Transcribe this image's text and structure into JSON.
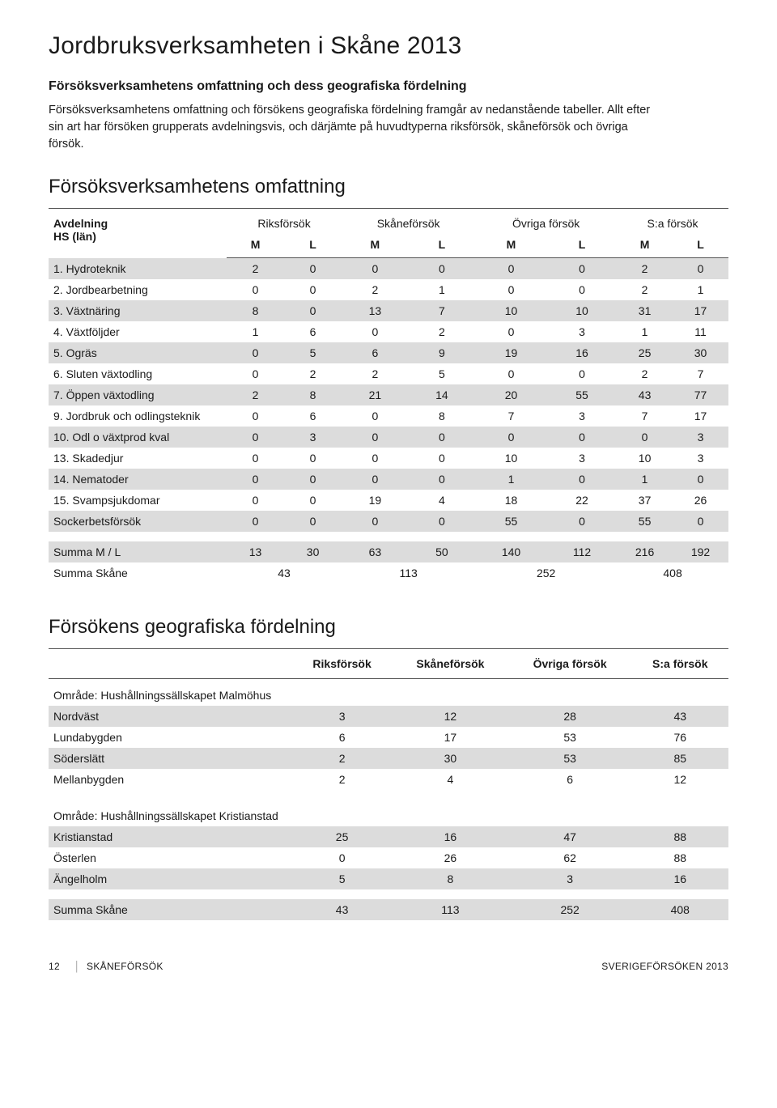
{
  "title": "Jordbruksverksamheten i Skåne 2013",
  "subhead": "Försöksverksamhetens omfattning och dess geografiska fördelning",
  "intro": "Försöksverksamhetens omfattning och försökens geografiska fördelning framgår av nedanstående tabeller. Allt efter sin art har försöken grupperats avdelningsvis, och därjämte på huvudtyperna riksförsök, skåneförsök och övriga försök.",
  "section1_title": "Försöksverksamhetens omfattning",
  "t1": {
    "head_label_line1": "Avdelning",
    "head_label_line2": "HS (län)",
    "groups": [
      "Riksförsök",
      "Skåneförsök",
      "Övriga försök",
      "S:a försök"
    ],
    "subcols": [
      "M",
      "L",
      "M",
      "L",
      "M",
      "L",
      "M",
      "L"
    ],
    "rows": [
      {
        "label": "1. Hydroteknik",
        "v": [
          2,
          0,
          0,
          0,
          0,
          0,
          2,
          0
        ]
      },
      {
        "label": "2. Jordbearbetning",
        "v": [
          0,
          0,
          2,
          1,
          0,
          0,
          2,
          1
        ]
      },
      {
        "label": "3. Växtnäring",
        "v": [
          8,
          0,
          13,
          7,
          10,
          10,
          31,
          17
        ]
      },
      {
        "label": "4. Växtföljder",
        "v": [
          1,
          6,
          0,
          2,
          0,
          3,
          1,
          11
        ]
      },
      {
        "label": "5. Ogräs",
        "v": [
          0,
          5,
          6,
          9,
          19,
          16,
          25,
          30
        ]
      },
      {
        "label": "6. Sluten växtodling",
        "v": [
          0,
          2,
          2,
          5,
          0,
          0,
          2,
          7
        ]
      },
      {
        "label": "7. Öppen växtodling",
        "v": [
          2,
          8,
          21,
          14,
          20,
          55,
          43,
          77
        ]
      },
      {
        "label": "9. Jordbruk och odlingsteknik",
        "v": [
          0,
          6,
          0,
          8,
          7,
          3,
          7,
          17
        ]
      },
      {
        "label": "10. Odl o växtprod kval",
        "v": [
          0,
          3,
          0,
          0,
          0,
          0,
          0,
          3
        ]
      },
      {
        "label": "13. Skadedjur",
        "v": [
          0,
          0,
          0,
          0,
          10,
          3,
          10,
          3
        ]
      },
      {
        "label": "14. Nematoder",
        "v": [
          0,
          0,
          0,
          0,
          1,
          0,
          1,
          0
        ]
      },
      {
        "label": "15. Svampsjukdomar",
        "v": [
          0,
          0,
          19,
          4,
          18,
          22,
          37,
          26
        ]
      },
      {
        "label": "Sockerbetsförsök",
        "v": [
          0,
          0,
          0,
          0,
          55,
          0,
          55,
          0
        ]
      }
    ],
    "sumML_label": "Summa M / L",
    "sumML": [
      13,
      30,
      63,
      50,
      140,
      112,
      216,
      192
    ],
    "sumSkane_label": "Summa Skåne",
    "sumSkane": [
      43,
      113,
      252,
      408
    ]
  },
  "section2_title": "Försökens geografiska fördelning",
  "t2": {
    "cols": [
      "Riksförsök",
      "Skåneförsök",
      "Övriga försök",
      "S:a försök"
    ],
    "area1": "Område: Hushållningssällskapet Malmöhus",
    "rows1": [
      {
        "label": "Nordväst",
        "v": [
          3,
          12,
          28,
          43
        ],
        "shade": true
      },
      {
        "label": "Lundabygden",
        "v": [
          6,
          17,
          53,
          76
        ],
        "shade": false
      },
      {
        "label": "Söderslätt",
        "v": [
          2,
          30,
          53,
          85
        ],
        "shade": true
      },
      {
        "label": "Mellanbygden",
        "v": [
          2,
          4,
          6,
          12
        ],
        "shade": false
      }
    ],
    "area2": "Område: Hushållningssällskapet Kristianstad",
    "rows2": [
      {
        "label": "Kristianstad",
        "v": [
          25,
          16,
          47,
          88
        ],
        "shade": true
      },
      {
        "label": "Österlen",
        "v": [
          0,
          26,
          62,
          88
        ],
        "shade": false
      },
      {
        "label": "Ängelholm",
        "v": [
          5,
          8,
          3,
          16
        ],
        "shade": true
      }
    ],
    "sum_label": "Summa Skåne",
    "sum": [
      43,
      113,
      252,
      408
    ]
  },
  "footer": {
    "pagenum": "12",
    "left": "SKÅNEFÖRSÖK",
    "right": "SVERIGEFÖRSÖKEN 2013"
  },
  "colors": {
    "shade": "#dcdcdc",
    "text": "#1a1a1a",
    "rule": "#555555",
    "background": "#ffffff"
  }
}
